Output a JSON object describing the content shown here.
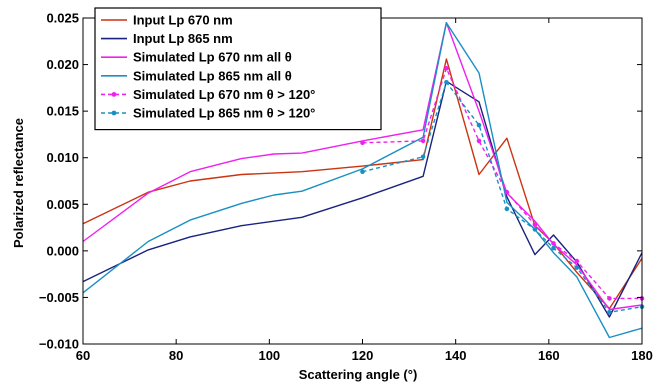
{
  "chart_data": {
    "type": "line",
    "title": "",
    "xlabel": "Scattering angle (°)",
    "ylabel": "Polarized reflectance",
    "xlim": [
      60,
      180
    ],
    "ylim": [
      -0.01,
      0.025
    ],
    "xticks": [
      60,
      80,
      100,
      120,
      140,
      160,
      180
    ],
    "xtick_labels": [
      "60",
      "80",
      "100",
      "120",
      "140",
      "160",
      "180"
    ],
    "yticks": [
      -0.01,
      -0.005,
      0,
      0.005,
      0.01,
      0.015,
      0.02,
      0.025
    ],
    "ytick_labels": [
      "−0.010",
      "−0.005",
      "0.000",
      "0.005",
      "0.010",
      "0.015",
      "0.020",
      "0.025"
    ],
    "grid": false,
    "legend_position": "top-left",
    "series": [
      {
        "name": "Input Lp 670 nm",
        "color": "#cc3311",
        "style": "solid",
        "marker": "none",
        "x": [
          60,
          74,
          83,
          94,
          107,
          120,
          133,
          138,
          145,
          151,
          157,
          161,
          166,
          173,
          180
        ],
        "y": [
          0.0029,
          0.0063,
          0.0075,
          0.0082,
          0.0085,
          0.0091,
          0.0098,
          0.0206,
          0.0082,
          0.0121,
          0.0027,
          0.0008,
          -0.0023,
          -0.0062,
          -0.0008
        ]
      },
      {
        "name": "Input Lp 865 nm",
        "color": "#1a237e",
        "style": "solid",
        "marker": "none",
        "x": [
          60,
          74,
          83,
          94,
          107,
          120,
          133,
          138,
          145,
          151,
          157,
          161,
          166,
          173,
          180
        ],
        "y": [
          -0.0033,
          0.0001,
          0.0015,
          0.0027,
          0.0036,
          0.0057,
          0.008,
          0.0182,
          0.016,
          0.0058,
          -0.0004,
          0.0017,
          -0.0012,
          -0.0071,
          -0.0002
        ]
      },
      {
        "name": "Simulated Lp 670 nm all θ",
        "color": "#ee22ee",
        "style": "solid",
        "marker": "none",
        "x": [
          60,
          74,
          83,
          94,
          101,
          107,
          120,
          133,
          138,
          145,
          151,
          157,
          161,
          166,
          173,
          180
        ],
        "y": [
          0.001,
          0.0062,
          0.0085,
          0.0099,
          0.0104,
          0.0105,
          0.0118,
          0.013,
          0.0245,
          0.015,
          0.0062,
          0.0032,
          0.0007,
          -0.0015,
          -0.0063,
          -0.0058
        ]
      },
      {
        "name": "Simulated Lp 865 nm all θ",
        "color": "#1a8fc4",
        "style": "solid",
        "marker": "none",
        "x": [
          60,
          74,
          83,
          94,
          101,
          107,
          120,
          133,
          138,
          145,
          151,
          157,
          161,
          166,
          173,
          180
        ],
        "y": [
          -0.0045,
          0.001,
          0.0033,
          0.0051,
          0.006,
          0.0064,
          0.0088,
          0.0122,
          0.0245,
          0.0191,
          0.0052,
          0.0023,
          -0.0002,
          -0.0028,
          -0.0093,
          -0.0083
        ]
      },
      {
        "name": "Simulated Lp 670 nm θ > 120°",
        "color": "#ee22ee",
        "style": "dashed",
        "marker": "dot",
        "x": [
          120,
          133,
          138,
          145,
          151,
          157,
          161,
          166,
          173,
          180
        ],
        "y": [
          0.0116,
          0.0118,
          0.0196,
          0.0118,
          0.0063,
          0.0028,
          0.0008,
          -0.0011,
          -0.0051,
          -0.0051
        ]
      },
      {
        "name": "Simulated Lp 865 nm θ > 120°",
        "color": "#1a8fc4",
        "style": "dashed",
        "marker": "dot",
        "x": [
          120,
          133,
          138,
          145,
          151,
          157,
          161,
          166,
          173,
          180
        ],
        "y": [
          0.0085,
          0.0101,
          0.0181,
          0.0135,
          0.0045,
          0.0023,
          0.0003,
          -0.0018,
          -0.0066,
          -0.006
        ]
      }
    ]
  }
}
